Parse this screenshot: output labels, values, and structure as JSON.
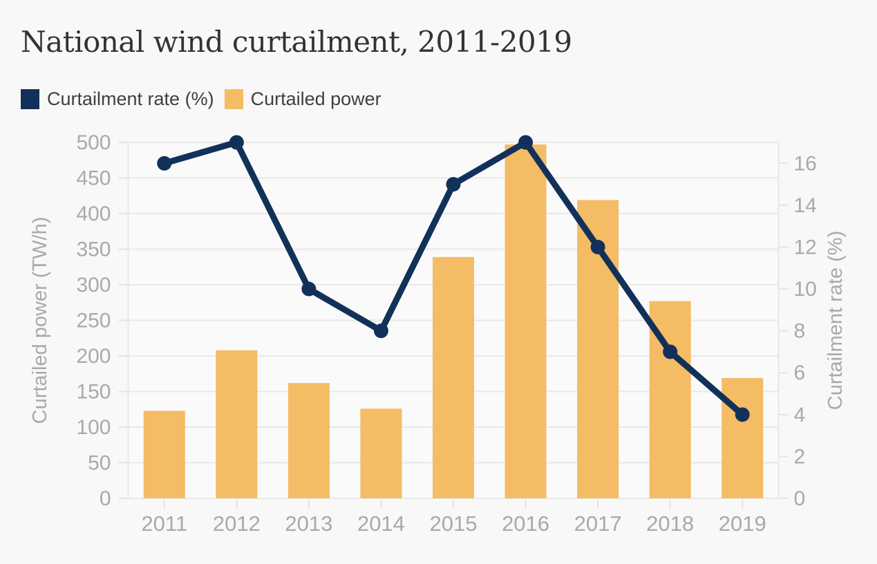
{
  "title": "National wind curtailment, 2011-2019",
  "legend": [
    {
      "label": "Curtailment rate (%)",
      "color": "#12315A"
    },
    {
      "label": "Curtailed power",
      "color": "#F4BC64"
    }
  ],
  "chart_data": {
    "type": "combo",
    "title": "National wind curtailment, 2011-2019",
    "categories": [
      "2011",
      "2012",
      "2013",
      "2014",
      "2015",
      "2016",
      "2017",
      "2018",
      "2019"
    ],
    "series": [
      {
        "name": "Curtailment rate (%)",
        "type": "line",
        "axis": "right",
        "color": "#12315A",
        "values": [
          16,
          17,
          10,
          8,
          15,
          17,
          12,
          7,
          4
        ]
      },
      {
        "name": "Curtailed power",
        "type": "bar",
        "axis": "left",
        "color": "#F4BC64",
        "values": [
          123,
          208,
          162,
          126,
          339,
          497,
          419,
          277,
          169
        ]
      }
    ],
    "left_axis": {
      "title": "Curtailed power (TW/h)",
      "min": 0,
      "max": 500,
      "ticks": [
        0,
        50,
        100,
        150,
        200,
        250,
        300,
        350,
        400,
        450,
        500
      ]
    },
    "right_axis": {
      "title": "Curtailment rate (%)",
      "min": 0,
      "max": 17,
      "ticks": [
        0,
        2,
        4,
        6,
        8,
        10,
        12,
        14,
        16
      ]
    },
    "x_axis": {
      "ticks": [
        "2011",
        "2012",
        "2013",
        "2014",
        "2015",
        "2016",
        "2017",
        "2018",
        "2019"
      ]
    },
    "grid": true,
    "legend_position": "top-left",
    "colors": {
      "background": "#F8F8F8",
      "plot_background": "#FAFAFA",
      "gridline": "#E8E8E8",
      "tick_dash": "#E3E3E3",
      "axis_text": "#A9A9A9",
      "title_text": "#333333",
      "legend_text": "#3F3F3F"
    }
  }
}
